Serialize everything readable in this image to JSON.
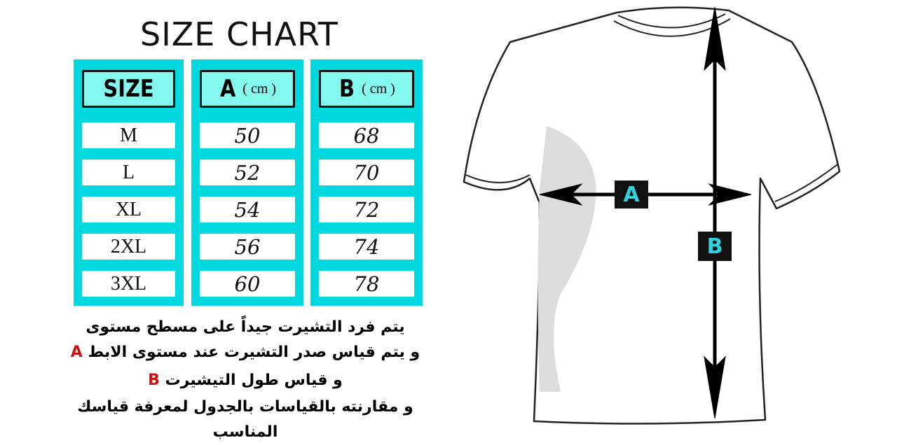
{
  "title": "SIZE CHART",
  "colors": {
    "table_cyan": "#00d8df",
    "header_cyan": "#84f8ef",
    "label_text": "#2fd3e0",
    "accent_red": "#d01010"
  },
  "table": {
    "headers": [
      {
        "label": "SIZE",
        "unit": ""
      },
      {
        "label": "A",
        "unit": "( cm )"
      },
      {
        "label": "B",
        "unit": "( cm )"
      }
    ],
    "rows": [
      {
        "size": "M",
        "a": "50",
        "b": "68"
      },
      {
        "size": "L",
        "a": "52",
        "b": "70"
      },
      {
        "size": "XL",
        "a": "54",
        "b": "72"
      },
      {
        "size": "2XL",
        "a": "56",
        "b": "74"
      },
      {
        "size": "3XL",
        "a": "60",
        "b": "78"
      }
    ]
  },
  "instructions": {
    "line1": "يتم فرد التشيرت جيداً على مسطح مستوى",
    "line2": "و يتم قياس صدر التشيرت عند مستوى الابط",
    "line2_marker": "A",
    "line3": "و قياس طول التيشيرت",
    "line3_marker": "B",
    "line4": "و مقارنته بالقياسات بالجدول لمعرفة قياسك المناسب"
  },
  "diagram": {
    "label_a": "A",
    "label_b": "B"
  }
}
